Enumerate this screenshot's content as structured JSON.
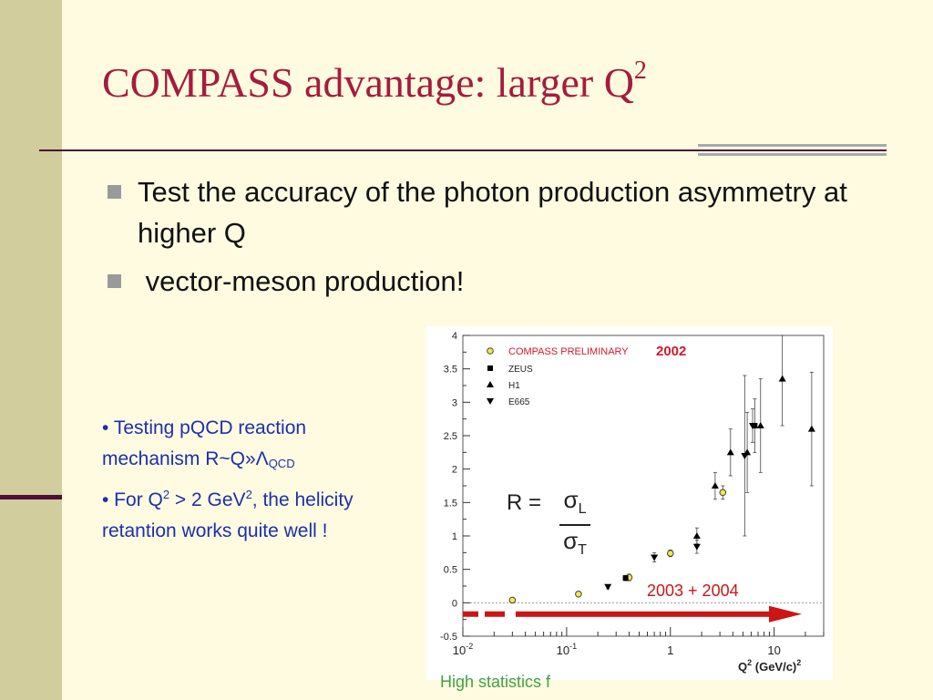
{
  "slide": {
    "title_main": "COMPASS advantage: larger Q",
    "title_sup": "2",
    "bullets": [
      "Test the accuracy of the photon production asymmetry at higher Q",
      " vector-meson production!"
    ],
    "note": {
      "l1_bullet": "• ",
      "l1_text": "Testing pQCD reaction mechanism R~Q»Λ",
      "l1_sub": "QCD",
      "l2_a": "• For Q",
      "l2_sup1": "2",
      "l2_b": " > 2 GeV",
      "l2_sup2": "2",
      "l2_c": ", the helicity retantion works quite well !"
    },
    "footer_fragment": "High statistics f",
    "colors": {
      "title": "#a51c3c",
      "note": "#1c2fb0",
      "sidebar": "#d2cd9c",
      "arrow": "#cc1515"
    }
  },
  "chart_data": {
    "type": "scatter",
    "xscale": "log",
    "xlim": [
      0.01,
      30
    ],
    "ylim": [
      -0.5,
      4
    ],
    "xlabel_base": "Q",
    "xlabel_sup": "2",
    "xlabel_unit": "(GeV/c)",
    "xlabel_unit_sup": "2",
    "x_ticks": [
      {
        "v": 0.01,
        "base": "10",
        "exp": "-2"
      },
      {
        "v": 0.1,
        "base": "10",
        "exp": "-1"
      },
      {
        "v": 1,
        "base": "1",
        "exp": ""
      },
      {
        "v": 10,
        "base": "10",
        "exp": ""
      }
    ],
    "y_ticks": [
      -0.5,
      0,
      0.5,
      1,
      1.5,
      2,
      2.5,
      3,
      3.5,
      4
    ],
    "y_tick_labels": [
      "-0.5",
      "0",
      "0.5",
      "1",
      "1.5",
      "2",
      "2.5",
      "3",
      "3.5",
      "4"
    ],
    "formula": {
      "lhs": "R =",
      "num": "σ",
      "num_sub": "L",
      "den": "σ",
      "den_sub": "T"
    },
    "legend_position": "top-left",
    "series": [
      {
        "name": "COMPASS PRELIMINARY",
        "marker": "circle",
        "points": [
          [
            0.03,
            0.04,
            0.02
          ],
          [
            0.13,
            0.13,
            0.03
          ],
          [
            0.4,
            0.38,
            0.05
          ],
          [
            1.0,
            0.74,
            0.05
          ],
          [
            3.2,
            1.65,
            0.1
          ]
        ]
      },
      {
        "name": "ZEUS",
        "marker": "square",
        "points": [
          [
            0.37,
            0.37,
            0.04
          ],
          [
            6.5,
            2.65,
            0.4
          ]
        ]
      },
      {
        "name": "H1",
        "marker": "triangle-up",
        "points": [
          [
            1.8,
            1.0,
            0.12
          ],
          [
            2.7,
            1.75,
            0.2
          ],
          [
            3.8,
            2.25,
            0.35
          ],
          [
            5.5,
            2.25,
            0.6
          ],
          [
            7.4,
            2.65,
            0.7
          ],
          [
            12,
            3.35,
            0.7
          ],
          [
            23,
            2.6,
            0.85
          ]
        ]
      },
      {
        "name": "E665",
        "marker": "triangle-down",
        "points": [
          [
            0.25,
            0.24,
            0.03
          ],
          [
            0.7,
            0.68,
            0.07
          ],
          [
            1.8,
            0.84,
            0.1
          ],
          [
            5.2,
            2.2,
            1.2
          ],
          [
            6.2,
            2.65,
            0.25
          ]
        ]
      }
    ],
    "legend_stamp": "2002",
    "arrow_label": "2003  +  2004"
  }
}
